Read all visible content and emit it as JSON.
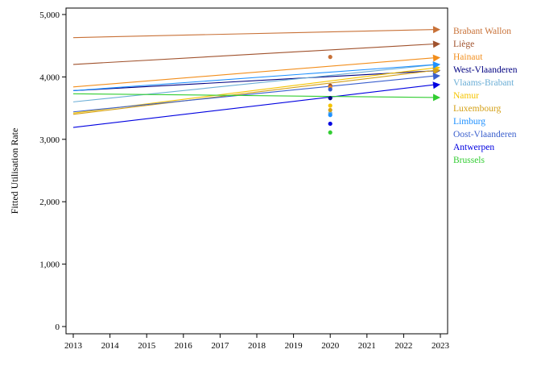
{
  "chart_data": {
    "type": "line",
    "ylabel": "Fitted Utilisation Rate",
    "xlabel": "",
    "xlim": [
      2013,
      2023
    ],
    "ylim": [
      0,
      5000
    ],
    "x_ticks": [
      2013,
      2014,
      2015,
      2016,
      2017,
      2018,
      2019,
      2020,
      2021,
      2022,
      2023
    ],
    "y_ticks": [
      0,
      1000,
      2000,
      3000,
      4000,
      5000
    ],
    "y_tick_labels": [
      "0",
      "1,000",
      "2,000",
      "3,000",
      "4,000",
      "5,000"
    ],
    "grid": false,
    "legend_position": "right",
    "marker_year": 2020,
    "series": [
      {
        "name": "Brabant Wallon",
        "color": "#c87137",
        "start": 4630,
        "end": 4760,
        "observed_2020": 4320
      },
      {
        "name": "Liège",
        "color": "#a0522d",
        "start": 4200,
        "end": 4530,
        "observed_2020": 3860
      },
      {
        "name": "Hainaut",
        "color": "#f28e1c",
        "start": 3840,
        "end": 4310,
        "observed_2020": 3830
      },
      {
        "name": "West-Vlaanderen",
        "color": "#000080",
        "start": 3780,
        "end": 4100,
        "observed_2020": 3660
      },
      {
        "name": "Vlaams-Brabant",
        "color": "#6baed6",
        "start": 3600,
        "end": 4200,
        "observed_2020": 3420
      },
      {
        "name": "Namur",
        "color": "#f5c400",
        "start": 3420,
        "end": 4150,
        "observed_2020": 3540
      },
      {
        "name": "Luxembourg",
        "color": "#d4a017",
        "start": 3400,
        "end": 4110,
        "observed_2020": 3470
      },
      {
        "name": "Limburg",
        "color": "#1e90ff",
        "start": 3780,
        "end": 4200,
        "observed_2020": 3390
      },
      {
        "name": "Oost-Vlaanderen",
        "color": "#3a5fcd",
        "start": 3440,
        "end": 4020,
        "observed_2020": 3800
      },
      {
        "name": "Antwerpen",
        "color": "#0000e0",
        "start": 3190,
        "end": 3880,
        "observed_2020": 3250
      },
      {
        "name": "Brussels",
        "color": "#32cd32",
        "start": 3730,
        "end": 3670,
        "observed_2020": 3110
      }
    ]
  }
}
